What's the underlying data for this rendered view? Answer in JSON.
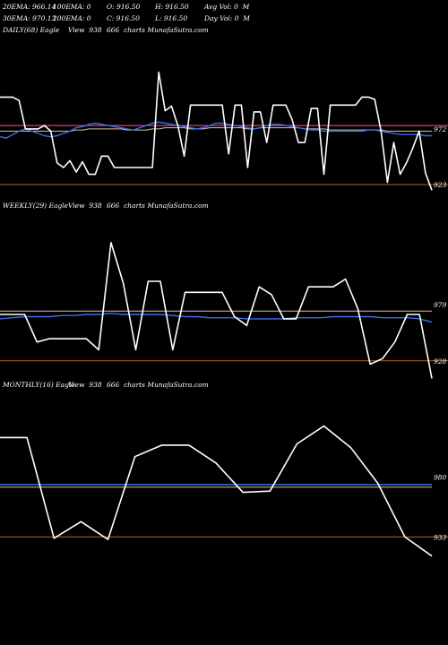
{
  "header": {
    "r1": [
      "20EMA: 966.14",
      "100EMA: 0",
      "O: 916.50",
      "H: 916.50",
      "Avg Vol: 0  M"
    ],
    "r2": [
      "30EMA: 970.13",
      "200EMA: 0",
      "C: 916.50",
      "L: 916.50",
      "Day Vol: 0  M"
    ]
  },
  "panels": [
    {
      "id": "daily",
      "label": [
        "DAILY(68) Eagle",
        "View  938",
        "666  charts MunafaSutra.com"
      ]
    },
    {
      "id": "weekly",
      "label": [
        "WEEKLY(29) Eagle",
        "View  938",
        "666  charts MunafaSutra.com"
      ]
    },
    {
      "id": "monthly",
      "label": [
        "MONTHLY(16) Eagle",
        "View  938",
        "666  charts MunafaSutra.com"
      ]
    }
  ],
  "colors": {
    "background": "#000000",
    "price": "#ffffff",
    "ema20": "#3a6fe8",
    "ema30": "#d8c4a0",
    "ema_pink": "#ff4fa0",
    "level": "#b8621b"
  },
  "chart_data": [
    {
      "type": "line",
      "name": "daily",
      "ylim": [
        908,
        1050
      ],
      "ticks": [
        {
          "value": 972,
          "label": "972"
        },
        {
          "value": 923,
          "label": "923"
        }
      ],
      "price": [
        1000,
        1000,
        1000,
        997,
        972,
        972,
        972,
        975,
        970,
        942,
        938,
        944,
        934,
        943,
        932,
        932,
        948,
        948,
        938,
        938,
        938,
        938,
        938,
        938,
        938,
        1022,
        988,
        992,
        975,
        948,
        993,
        993,
        993,
        993,
        993,
        993,
        950,
        993,
        993,
        938,
        987,
        987,
        960,
        993,
        993,
        993,
        980,
        960,
        960,
        990,
        990,
        932,
        993,
        993,
        993,
        993,
        993,
        1000,
        1000,
        998,
        970,
        925,
        960,
        932,
        942,
        955,
        970,
        933,
        918
      ],
      "ema20": [
        965,
        964,
        967,
        970,
        972,
        970,
        968,
        966,
        965,
        966,
        968,
        970,
        973,
        974,
        976,
        977,
        976,
        975,
        974,
        973,
        972,
        971,
        973,
        975,
        977,
        978,
        977,
        976,
        975,
        974,
        973,
        972,
        973,
        975,
        977,
        977,
        976,
        975,
        974,
        973,
        972,
        973,
        975,
        976,
        976,
        975,
        974,
        973,
        972,
        971,
        971,
        970,
        970,
        970,
        970,
        970,
        970,
        970,
        971,
        971,
        970,
        969,
        968,
        967,
        967,
        967,
        967,
        966,
        966
      ],
      "ema30": [
        970,
        970,
        970,
        970,
        970,
        970,
        970,
        970,
        970,
        970,
        970,
        970,
        971,
        971,
        972,
        972,
        972,
        972,
        972,
        972,
        971,
        971,
        971,
        971,
        972,
        972,
        973,
        973,
        973,
        973,
        972,
        972,
        972,
        973,
        973,
        973,
        973,
        973,
        973,
        972,
        972,
        973,
        973,
        973,
        973,
        973,
        973,
        973,
        972,
        972,
        972,
        972,
        971,
        971,
        971,
        971,
        971,
        971,
        971,
        971,
        971,
        970,
        970,
        970,
        970,
        970,
        970,
        970,
        970
      ],
      "levels": [
        {
          "value": 975,
          "color": "#ff4fa0"
        },
        {
          "value": 923,
          "color": "#b8621b"
        }
      ]
    },
    {
      "type": "line",
      "name": "weekly",
      "ylim": [
        910,
        1060
      ],
      "ticks": [
        {
          "value": 979,
          "label": "979"
        },
        {
          "value": 928,
          "label": "928"
        }
      ],
      "price": [
        970,
        970,
        970,
        945,
        948,
        948,
        948,
        948,
        938,
        1035,
        998,
        938,
        1000,
        1000,
        938,
        990,
        990,
        990,
        990,
        968,
        960,
        995,
        988,
        966,
        966,
        995,
        995,
        995,
        1002,
        975,
        925,
        930,
        945,
        970,
        970,
        912
      ],
      "ema20": [
        966,
        967,
        968,
        968,
        968,
        969,
        969,
        970,
        970,
        971,
        970,
        970,
        970,
        970,
        969,
        968,
        968,
        967,
        967,
        967,
        966,
        966,
        966,
        966,
        967,
        967,
        967,
        968,
        968,
        968,
        968,
        967,
        967,
        967,
        966,
        963
      ],
      "ema30": [
        973,
        973,
        973,
        973,
        973,
        973,
        973,
        973,
        973,
        973,
        973,
        973,
        973,
        973,
        973,
        973,
        973,
        973,
        973,
        973,
        973,
        973,
        973,
        973,
        973,
        973,
        973,
        973,
        973,
        973,
        973,
        973,
        973,
        973,
        973,
        973
      ],
      "levels": [
        {
          "value": 928,
          "color": "#b8621b"
        }
      ]
    },
    {
      "type": "line",
      "name": "monthly",
      "ylim": [
        915,
        1045
      ],
      "ticks": [
        {
          "value": 980,
          "label": "980"
        },
        {
          "value": 933,
          "label": "933"
        }
      ],
      "price": [
        1011,
        1011,
        932,
        945,
        931,
        996,
        1005,
        1005,
        991,
        968,
        969,
        1006,
        1020,
        1003,
        975,
        933,
        918
      ],
      "ema20": [
        974,
        974,
        974,
        974,
        974,
        974,
        974,
        974,
        974,
        974,
        974,
        974,
        974,
        974,
        974,
        974,
        974
      ],
      "ema30": [
        972,
        972,
        972,
        972,
        972,
        972,
        972,
        972,
        972,
        972,
        972,
        972,
        972,
        972,
        972,
        972,
        972
      ],
      "levels": [
        {
          "value": 933,
          "color": "#b8621b"
        }
      ]
    }
  ]
}
